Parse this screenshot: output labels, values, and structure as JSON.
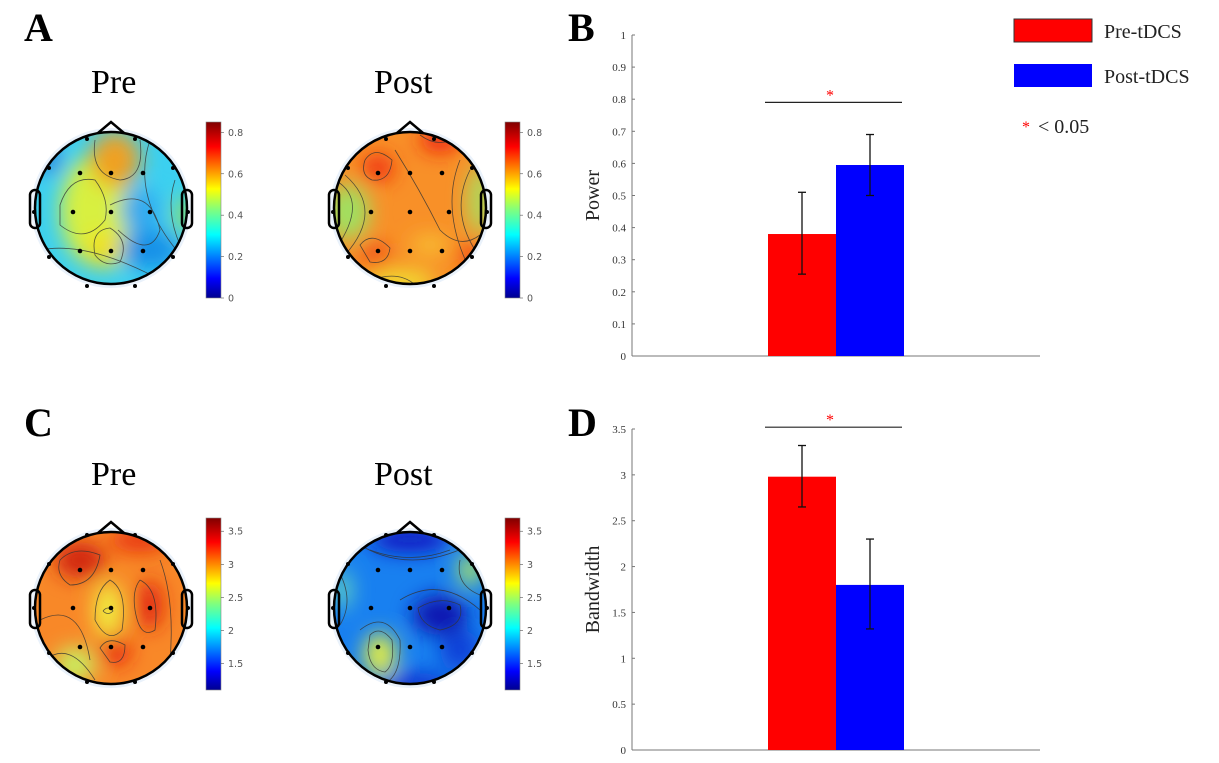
{
  "panels": {
    "A": {
      "label": "A",
      "pre_title": "Pre",
      "post_title": "Post",
      "colorbar_ticks": [
        "0.8",
        "0.6",
        "0.4",
        "0.2",
        "0"
      ],
      "colorbar_range": [
        0,
        0.85
      ],
      "measure": "Power"
    },
    "B": {
      "label": "B"
    },
    "C": {
      "label": "C",
      "pre_title": "Pre",
      "post_title": "Post",
      "colorbar_ticks": [
        "3.5",
        "3",
        "2.5",
        "2",
        "1.5"
      ],
      "colorbar_range": [
        1.1,
        3.7
      ],
      "measure": "Bandwidth"
    },
    "D": {
      "label": "D"
    }
  },
  "legend": {
    "items": [
      {
        "label": "Pre-tDCS",
        "color": "#ff0000"
      },
      {
        "label": "Post-tDCS",
        "color": "#0000ff"
      }
    ],
    "significance_symbol": "*",
    "significance_label": "< 0.05",
    "significance_color": "#ff0000"
  },
  "chart_data": [
    {
      "panel": "B",
      "type": "bar",
      "title": "",
      "xlabel": "",
      "ylabel": "Power",
      "ylim": [
        0,
        1
      ],
      "yticks": [
        0,
        0.1,
        0.2,
        0.3,
        0.4,
        0.5,
        0.6,
        0.7,
        0.8,
        0.9,
        1
      ],
      "ytick_labels": [
        "0",
        "0.1",
        "0.2",
        "0.3",
        "0.4",
        "0.5",
        "0.6",
        "0.7",
        "0.8",
        "0.9",
        "1"
      ],
      "series": [
        {
          "name": "Pre-tDCS",
          "value": 0.38,
          "err_low": 0.255,
          "err_high": 0.51,
          "color": "#ff0000"
        },
        {
          "name": "Post-tDCS",
          "value": 0.595,
          "err_low": 0.5,
          "err_high": 0.69,
          "color": "#0000ff"
        }
      ],
      "significance": {
        "label": "*",
        "y": 0.79
      }
    },
    {
      "panel": "D",
      "type": "bar",
      "title": "",
      "xlabel": "",
      "ylabel": "Bandwidth",
      "ylim": [
        0,
        3.5
      ],
      "yticks": [
        0,
        0.5,
        1,
        1.5,
        2,
        2.5,
        3,
        3.5
      ],
      "ytick_labels": [
        "0",
        "0.5",
        "1",
        "1.5",
        "2",
        "2.5",
        "3",
        "3.5"
      ],
      "series": [
        {
          "name": "Pre-tDCS",
          "value": 2.98,
          "err_low": 2.65,
          "err_high": 3.32,
          "color": "#ff0000"
        },
        {
          "name": "Post-tDCS",
          "value": 1.8,
          "err_low": 1.32,
          "err_high": 2.3,
          "color": "#0000ff"
        }
      ],
      "significance": {
        "label": "*",
        "y": 3.52
      }
    }
  ]
}
